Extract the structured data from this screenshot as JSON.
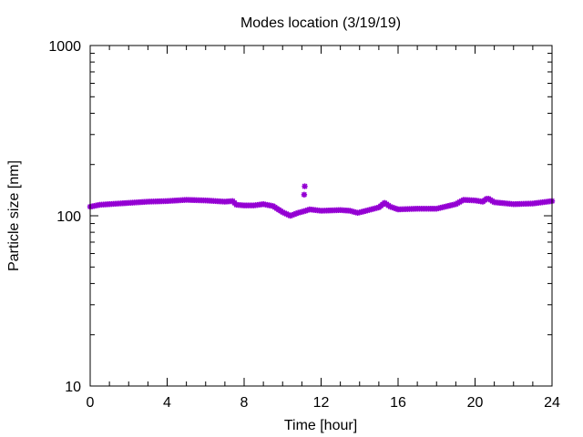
{
  "chart_data": {
    "type": "scatter",
    "title": "Modes location (3/19/19)",
    "xlabel": "Time [hour]",
    "ylabel": "Particle size [nm]",
    "xlim": [
      0,
      24
    ],
    "ylim": [
      10,
      1000
    ],
    "yscale": "log",
    "grid": false,
    "legend": "none",
    "xticks": [
      "0",
      "4",
      "8",
      "12",
      "16",
      "20",
      "24"
    ],
    "xtick_values": [
      0,
      4,
      8,
      12,
      16,
      20,
      24
    ],
    "yticks": [
      "10",
      "100",
      "1000"
    ],
    "ytick_values": [
      10,
      100,
      1000
    ],
    "marker_color": "#9400d3",
    "marker": "star",
    "profile": {
      "x": [
        0,
        0.5,
        1,
        2,
        3,
        4,
        5,
        6,
        7,
        7.4,
        7.6,
        8,
        8.5,
        9,
        9.5,
        10,
        10.4,
        10.8,
        11.2,
        11.4,
        12,
        13,
        13.5,
        13.9,
        14.2,
        15,
        15.3,
        15.6,
        16,
        17,
        18,
        19,
        19.4,
        20,
        20.4,
        20.65,
        21,
        22,
        23,
        24
      ],
      "y": [
        113,
        116,
        117,
        119,
        121,
        122,
        124,
        123,
        121,
        122,
        116,
        115,
        115,
        117,
        114,
        105,
        100,
        104,
        107,
        109,
        107,
        108,
        107,
        104,
        106,
        112,
        119,
        113,
        109,
        110,
        110,
        117,
        124,
        123,
        121,
        127,
        120,
        117,
        118,
        122
      ],
      "step": 0.1
    },
    "outliers": [
      {
        "x": 11.15,
        "y": 149
      },
      {
        "x": 11.12,
        "y": 133
      }
    ]
  }
}
